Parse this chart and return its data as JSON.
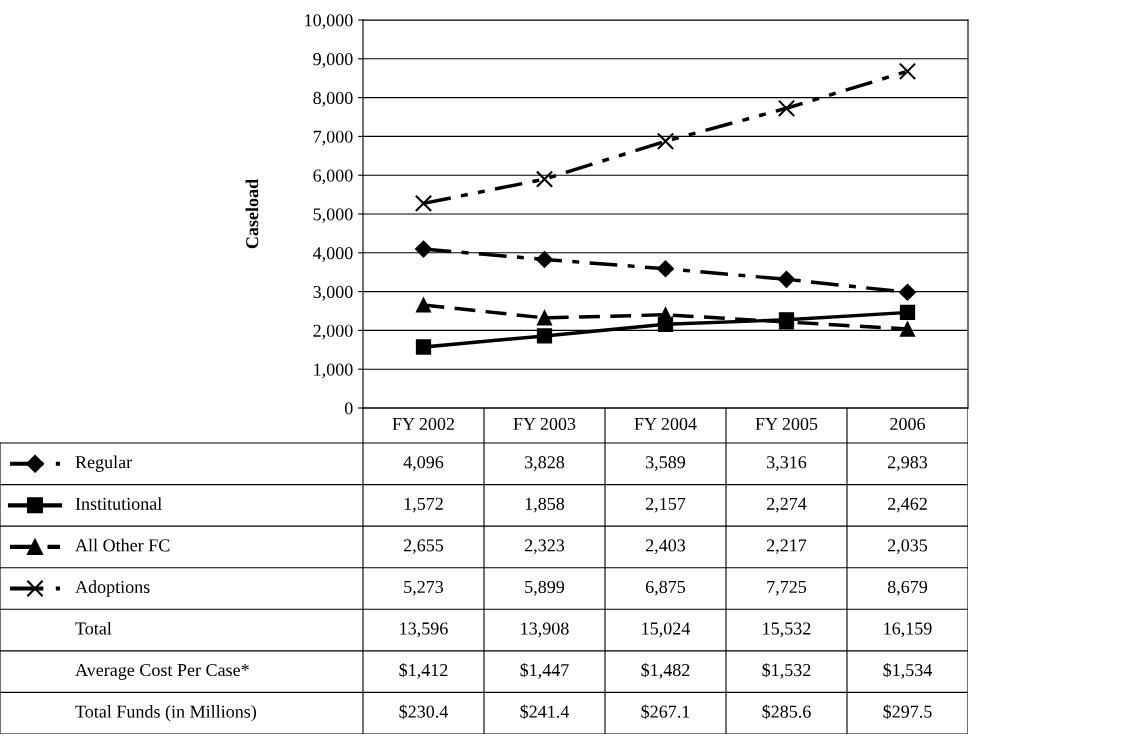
{
  "chart_data": {
    "type": "line",
    "ylabel": "Caseload",
    "categories": [
      "FY 2002",
      "FY 2003",
      "FY 2004",
      "FY 2005",
      "2006"
    ],
    "series": [
      {
        "name": "Regular",
        "color": "#000000",
        "marker": "diamond",
        "line_style": "dashdot",
        "values": [
          4096,
          3828,
          3589,
          3316,
          2983
        ],
        "value_labels": [
          "4,096",
          "3,828",
          "3,589",
          "3,316",
          "2,983"
        ]
      },
      {
        "name": "Institutional",
        "color": "#000000",
        "marker": "square",
        "line_style": "solid",
        "values": [
          1572,
          1858,
          2157,
          2274,
          2462
        ],
        "value_labels": [
          "1,572",
          "1,858",
          "2,157",
          "2,274",
          "2,462"
        ]
      },
      {
        "name": "All Other FC",
        "color": "#000000",
        "marker": "triangle",
        "line_style": "dashed",
        "values": [
          2655,
          2323,
          2403,
          2217,
          2035
        ],
        "value_labels": [
          "2,655",
          "2,323",
          "2,403",
          "2,217",
          "2,035"
        ]
      },
      {
        "name": "Adoptions",
        "color": "#000000",
        "marker": "cross",
        "line_style": "dashdotdot",
        "values": [
          5273,
          5899,
          6875,
          7725,
          8679
        ],
        "value_labels": [
          "5,273",
          "5,899",
          "6,875",
          "7,725",
          "8,679"
        ]
      }
    ],
    "ylim": [
      0,
      10000
    ],
    "yticks": [
      0,
      {
        "value": 1000,
        "label": "1,000"
      },
      {
        "value": 2000,
        "label": "2,000"
      },
      {
        "value": 3000,
        "label": "3,000"
      },
      {
        "value": 4000,
        "label": "4,000"
      },
      {
        "value": 5000,
        "label": "5,000"
      },
      {
        "value": 6000,
        "label": "6,000"
      },
      {
        "value": 7000,
        "label": "7,000"
      },
      {
        "value": 8000,
        "label": "8,000"
      },
      {
        "value": 9000,
        "label": "9,000"
      },
      {
        "value": 10000,
        "label": "10,000"
      }
    ],
    "grid": "y",
    "legend": "bottom",
    "annotations": [
      "Total",
      "13,596",
      "13,908",
      "15,024",
      "15,532",
      "16,159",
      "Average Cost Per Case*",
      "$1,412",
      "$1,447",
      "$1,482",
      "$1,532",
      "$1,534",
      "Total Funds (in Millions)",
      "$230.4",
      "$241.4",
      "$267.1",
      "$285.6",
      "$297.5"
    ]
  }
}
